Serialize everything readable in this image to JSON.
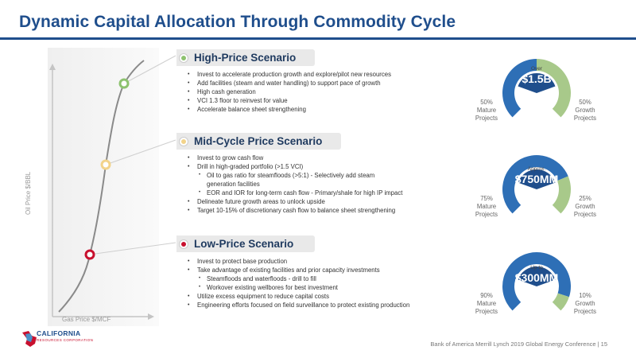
{
  "title": "Dynamic Capital Allocation Through Commodity Cycle",
  "axes": {
    "y_label": "Oil Price $/BBL",
    "x_label": "Gas Price $/MCF"
  },
  "scenarios": [
    {
      "name": "High-Price Scenario",
      "dot_color": "#8dc26f",
      "bullets": [
        "Invest to accelerate production growth and explore/pilot new resources",
        "Add facilities (steam and water handling) to support pace of growth",
        "High cash generation",
        "VCI 1.3 floor to reinvest for value",
        "Accelerate balance sheet strengthening"
      ]
    },
    {
      "name": "Mid-Cycle Price Scenario",
      "dot_color": "#f2d38a",
      "bullets": [
        "Invest to grow cash flow",
        "Drill in high-graded portfolio (>1.5 VCI)",
        "Delineate future growth areas to unlock upside",
        "Target 10-15% of discretionary cash flow to balance sheet strengthening"
      ],
      "sub_bullets": [
        "Oil to gas ratio for steamfloods (>5:1) - Selectively add steam",
        "generation facilities",
        "EOR and IOR for long-term cash flow - Primary/shale for high IP impact"
      ]
    },
    {
      "name": "Low-Price Scenario",
      "dot_color": "#c8102e",
      "bullets": [
        "Invest to protect base production",
        "Take advantage of existing facilities and prior capacity investments",
        "Utilize excess equipment to reduce capital costs",
        "Engineering efforts focused on field surveillance to protect existing production"
      ],
      "sub_bullets": [
        "Steamfloods and waterfloods - drill to fill",
        "Workover existing wellbores for best investment"
      ]
    }
  ],
  "gauges": [
    {
      "prefix": "Over",
      "amount": "$1.5B",
      "mature_pct": 50,
      "growth_pct": 50,
      "mature_label": [
        "50%",
        "Mature",
        "Projects"
      ],
      "growth_label": [
        "50%",
        "Growth",
        "Projects"
      ]
    },
    {
      "prefix": "Approx.",
      "amount": "$750MM",
      "mature_pct": 75,
      "growth_pct": 25,
      "mature_label": [
        "75%",
        "Mature",
        "Projects"
      ],
      "growth_label": [
        "25%",
        "Growth",
        "Projects"
      ]
    },
    {
      "prefix": "Up to",
      "amount": "$300MM",
      "mature_pct": 90,
      "growth_pct": 10,
      "mature_label": [
        "90%",
        "Mature",
        "Projects"
      ],
      "growth_label": [
        "10%",
        "Growth",
        "Projects"
      ]
    }
  ],
  "colors": {
    "brand": "#1f4e8c",
    "mature": "#2e6fb6",
    "growth": "#a8c98a",
    "gauge_inner": "#1f4e8c"
  },
  "footer": {
    "text": "Bank of America Merrill Lynch 2019 Global Energy Conference | 15"
  },
  "logo": {
    "name": "CALIFORNIA",
    "sub": "RESOURCES CORPORATION"
  }
}
